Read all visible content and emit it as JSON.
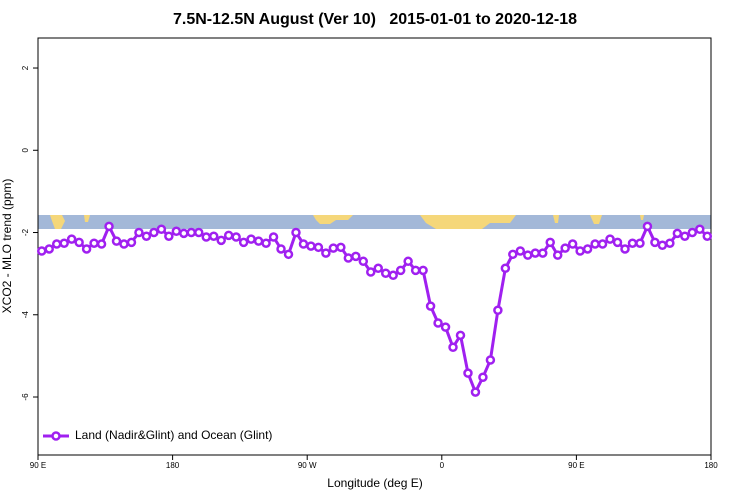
{
  "chart_data": {
    "type": "line",
    "title": "7.5N-12.5N August (Ver 10)   2015-01-01 to 2020-12-18",
    "x_label": "Longitude (deg E)",
    "y_label": "XCO2 - MLO trend (ppm)",
    "x": [
      92.5,
      97.5,
      102.5,
      107.5,
      112.5,
      117.5,
      122.5,
      127.5,
      132.5,
      137.5,
      142.5,
      147.5,
      152.5,
      157.5,
      162.5,
      167.5,
      172.5,
      177.5,
      182.5,
      187.5,
      192.5,
      197.5,
      202.5,
      207.5,
      212.5,
      217.5,
      222.5,
      227.5,
      232.5,
      237.5,
      242.5,
      247.5,
      252.5,
      257.5,
      262.5,
      267.5,
      272.5,
      277.5,
      282.5,
      287.5,
      292.5,
      297.5,
      302.5,
      307.5,
      312.5,
      317.5,
      322.5,
      327.5,
      332.5,
      337.5,
      342.5,
      347.5,
      352.5,
      357.5,
      362.5,
      367.5,
      372.5,
      377.5,
      382.5,
      387.5,
      392.5,
      397.5,
      402.5,
      407.5,
      412.5,
      417.5,
      422.5,
      427.5,
      432.5,
      437.5,
      442.5,
      447.5,
      452.5,
      457.5,
      462.5,
      467.5,
      472.5,
      477.5,
      482.5,
      487.5,
      492.5,
      497.5,
      502.5,
      507.5,
      512.5,
      517.5,
      522.5,
      527.5,
      532.5,
      537.5
    ],
    "series": [
      {
        "name": "Land (Nadir&Glint) and Ocean (Glint)",
        "color": "#a020f0",
        "values": [
          -2.45,
          -2.4,
          -2.28,
          -2.26,
          -2.16,
          -2.24,
          -2.4,
          -2.26,
          -2.28,
          -1.85,
          -2.21,
          -2.28,
          -2.24,
          -2.0,
          -2.09,
          -2.0,
          -1.92,
          -2.09,
          -1.97,
          -2.02,
          -2.0,
          -2.0,
          -2.11,
          -2.09,
          -2.19,
          -2.07,
          -2.11,
          -2.24,
          -2.16,
          -2.21,
          -2.26,
          -2.11,
          -2.4,
          -2.53,
          -2.0,
          -2.28,
          -2.33,
          -2.36,
          -2.5,
          -2.38,
          -2.36,
          -2.62,
          -2.58,
          -2.7,
          -2.96,
          -2.87,
          -2.99,
          -3.04,
          -2.92,
          -2.7,
          -2.92,
          -2.92,
          -3.79,
          -4.2,
          -4.3,
          -4.79,
          -4.5,
          -5.42,
          -5.88,
          -5.52,
          -5.1,
          -3.89,
          -2.87,
          -2.53,
          -2.45,
          -2.55,
          -2.5,
          -2.5,
          -2.24,
          -2.55,
          -2.38,
          -2.28,
          -2.45,
          -2.4,
          -2.28,
          -2.28,
          -2.16,
          -2.24,
          -2.4,
          -2.26,
          -2.26,
          -1.85,
          -2.24,
          -2.31,
          -2.26,
          -2.02,
          -2.09,
          -2.0,
          -1.92,
          -2.09
        ]
      }
    ],
    "xlim": [
      90,
      540
    ],
    "xticks": [
      {
        "value": 90,
        "label": "90 E"
      },
      {
        "value": 180,
        "label": "180"
      },
      {
        "value": 270,
        "label": "90 W"
      },
      {
        "value": 360,
        "label": "0"
      },
      {
        "value": 450,
        "label": "90 E"
      },
      {
        "value": 540,
        "label": "180"
      }
    ],
    "ylim": [
      -7.41,
      2.73
    ],
    "yticks": [
      -6,
      -4,
      -2,
      0,
      2
    ],
    "legend": "bottom-left",
    "grid": false
  }
}
